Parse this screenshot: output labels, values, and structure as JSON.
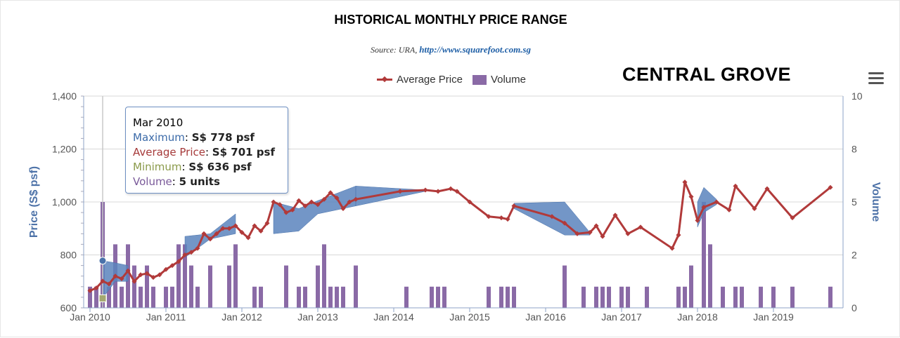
{
  "header": {
    "title": "HISTORICAL MONTHLY PRICE RANGE",
    "source_prefix": "Source: URA,",
    "source_link": "http://www.squarefoot.com.sg",
    "project_name": "CENTRAL GROVE"
  },
  "legend": {
    "avg_label": "Average Price",
    "vol_label": "Volume"
  },
  "colors": {
    "avg_line": "#b13a3a",
    "range_band": "#5b84bd",
    "volume_bar": "#8a6aa6",
    "axis_left": "#4d72a8",
    "axis_right": "#4d72a8"
  },
  "tooltip": {
    "month": "Mar 2010",
    "max_label": "Maximum",
    "max_value": "S$ 778 psf",
    "avg_label": "Average Price",
    "avg_value": "S$ 701 psf",
    "min_label": "Minimum",
    "min_value": "S$ 636 psf",
    "vol_label": "Volume",
    "vol_value": "5 units"
  },
  "chart_data": {
    "type": "line",
    "x_axis": {
      "ticks": [
        "Jan 2010",
        "Jan 2011",
        "Jan 2012",
        "Jan 2013",
        "Jan 2014",
        "Jan 2015",
        "Jan 2016",
        "Jan 2017",
        "Jan 2018",
        "Jan 2019"
      ],
      "range": [
        "2009-12",
        "2019-12"
      ]
    },
    "y_axis_left": {
      "label": "Price (S$ psf)",
      "range": [
        600,
        1400
      ],
      "ticks": [
        "600",
        "800",
        "1,000",
        "1,200",
        "1,400"
      ]
    },
    "y_axis_right": {
      "label": "Volume",
      "range": [
        0,
        10
      ],
      "ticks": [
        "0",
        "2",
        "5",
        "8",
        "10"
      ]
    },
    "grid": true,
    "legend_position": "top-center",
    "series": [
      {
        "name": "Average Price",
        "kind": "line",
        "points": [
          [
            "2010-01",
            665
          ],
          [
            "2010-02",
            675
          ],
          [
            "2010-03",
            701
          ],
          [
            "2010-04",
            690
          ],
          [
            "2010-05",
            720
          ],
          [
            "2010-06",
            710
          ],
          [
            "2010-07",
            740
          ],
          [
            "2010-08",
            700
          ],
          [
            "2010-09",
            725
          ],
          [
            "2010-10",
            730
          ],
          [
            "2010-11",
            715
          ],
          [
            "2010-12",
            725
          ],
          [
            "2011-01",
            745
          ],
          [
            "2011-02",
            760
          ],
          [
            "2011-03",
            775
          ],
          [
            "2011-04",
            800
          ],
          [
            "2011-05",
            810
          ],
          [
            "2011-06",
            825
          ],
          [
            "2011-07",
            880
          ],
          [
            "2011-08",
            860
          ],
          [
            "2011-09",
            880
          ],
          [
            "2011-10",
            900
          ],
          [
            "2011-11",
            900
          ],
          [
            "2011-12",
            910
          ],
          [
            "2012-01",
            885
          ],
          [
            "2012-02",
            865
          ],
          [
            "2012-03",
            910
          ],
          [
            "2012-04",
            890
          ],
          [
            "2012-05",
            920
          ],
          [
            "2012-06",
            1000
          ],
          [
            "2012-07",
            990
          ],
          [
            "2012-08",
            960
          ],
          [
            "2012-09",
            970
          ],
          [
            "2012-10",
            1005
          ],
          [
            "2012-11",
            985
          ],
          [
            "2012-12",
            1000
          ],
          [
            "2013-01",
            990
          ],
          [
            "2013-02",
            1010
          ],
          [
            "2013-03",
            1035
          ],
          [
            "2013-04",
            1015
          ],
          [
            "2013-05",
            975
          ],
          [
            "2013-06",
            1000
          ],
          [
            "2013-07",
            1010
          ],
          [
            "2014-02",
            1040
          ],
          [
            "2014-06",
            1045
          ],
          [
            "2014-08",
            1040
          ],
          [
            "2014-10",
            1050
          ],
          [
            "2014-11",
            1040
          ],
          [
            "2015-01",
            1000
          ],
          [
            "2015-04",
            945
          ],
          [
            "2015-06",
            940
          ],
          [
            "2015-07",
            935
          ],
          [
            "2015-08",
            985
          ],
          [
            "2016-02",
            945
          ],
          [
            "2016-04",
            920
          ],
          [
            "2016-06",
            880
          ],
          [
            "2016-08",
            885
          ],
          [
            "2016-09",
            910
          ],
          [
            "2016-10",
            870
          ],
          [
            "2016-12",
            950
          ],
          [
            "2017-02",
            880
          ],
          [
            "2017-04",
            905
          ],
          [
            "2017-09",
            825
          ],
          [
            "2017-10",
            875
          ],
          [
            "2017-11",
            1075
          ],
          [
            "2017-12",
            1020
          ],
          [
            "2018-01",
            930
          ],
          [
            "2018-02",
            980
          ],
          [
            "2018-04",
            1000
          ],
          [
            "2018-06",
            970
          ],
          [
            "2018-07",
            1060
          ],
          [
            "2018-10",
            975
          ],
          [
            "2018-12",
            1050
          ],
          [
            "2019-04",
            940
          ],
          [
            "2019-10",
            1055
          ]
        ]
      },
      {
        "name": "Maximum",
        "kind": "range_upper",
        "points": [
          [
            "2010-03",
            778
          ],
          [
            "2010-05",
            770
          ],
          [
            "2010-07",
            760
          ],
          [
            "2011-04",
            870
          ],
          [
            "2011-08",
            880
          ],
          [
            "2011-12",
            955
          ],
          [
            "2012-06",
            1000
          ],
          [
            "2012-10",
            975
          ],
          [
            "2013-01",
            1005
          ],
          [
            "2013-07",
            1060
          ],
          [
            "2014-06",
            1045
          ],
          [
            "2015-08",
            995
          ],
          [
            "2016-04",
            1000
          ],
          [
            "2016-08",
            885
          ],
          [
            "2018-01",
            1000
          ],
          [
            "2018-02",
            1055
          ],
          [
            "2018-04",
            1010
          ]
        ]
      },
      {
        "name": "Minimum",
        "kind": "range_lower",
        "points": [
          [
            "2010-03",
            636
          ],
          [
            "2010-05",
            700
          ],
          [
            "2010-07",
            700
          ],
          [
            "2011-04",
            790
          ],
          [
            "2011-08",
            860
          ],
          [
            "2011-12",
            880
          ],
          [
            "2012-06",
            880
          ],
          [
            "2012-10",
            890
          ],
          [
            "2013-01",
            955
          ],
          [
            "2013-07",
            985
          ],
          [
            "2014-06",
            1040
          ],
          [
            "2015-08",
            975
          ],
          [
            "2016-04",
            875
          ],
          [
            "2016-08",
            875
          ],
          [
            "2018-01",
            905
          ],
          [
            "2018-02",
            960
          ],
          [
            "2018-04",
            990
          ]
        ]
      },
      {
        "name": "Volume",
        "kind": "bars",
        "points": [
          [
            "2010-01",
            1
          ],
          [
            "2010-02",
            1
          ],
          [
            "2010-03",
            5
          ],
          [
            "2010-04",
            1
          ],
          [
            "2010-05",
            3
          ],
          [
            "2010-06",
            1
          ],
          [
            "2010-07",
            3
          ],
          [
            "2010-08",
            2
          ],
          [
            "2010-09",
            1
          ],
          [
            "2010-10",
            2
          ],
          [
            "2010-11",
            1
          ],
          [
            "2011-01",
            1
          ],
          [
            "2011-02",
            1
          ],
          [
            "2011-03",
            3
          ],
          [
            "2011-04",
            3
          ],
          [
            "2011-05",
            2
          ],
          [
            "2011-06",
            1
          ],
          [
            "2011-08",
            2
          ],
          [
            "2011-11",
            2
          ],
          [
            "2011-12",
            3
          ],
          [
            "2012-03",
            1
          ],
          [
            "2012-04",
            1
          ],
          [
            "2012-08",
            2
          ],
          [
            "2012-10",
            1
          ],
          [
            "2012-11",
            1
          ],
          [
            "2013-01",
            2
          ],
          [
            "2013-02",
            3
          ],
          [
            "2013-03",
            1
          ],
          [
            "2013-04",
            1
          ],
          [
            "2013-05",
            1
          ],
          [
            "2013-07",
            2
          ],
          [
            "2014-03",
            1
          ],
          [
            "2014-07",
            1
          ],
          [
            "2014-08",
            1
          ],
          [
            "2014-09",
            1
          ],
          [
            "2015-04",
            1
          ],
          [
            "2015-06",
            1
          ],
          [
            "2015-07",
            1
          ],
          [
            "2015-08",
            1
          ],
          [
            "2016-04",
            2
          ],
          [
            "2016-07",
            1
          ],
          [
            "2016-09",
            1
          ],
          [
            "2016-10",
            1
          ],
          [
            "2016-11",
            1
          ],
          [
            "2017-01",
            1
          ],
          [
            "2017-02",
            1
          ],
          [
            "2017-05",
            1
          ],
          [
            "2017-10",
            1
          ],
          [
            "2017-11",
            1
          ],
          [
            "2017-12",
            2
          ],
          [
            "2018-02",
            5
          ],
          [
            "2018-03",
            3
          ],
          [
            "2018-05",
            1
          ],
          [
            "2018-07",
            1
          ],
          [
            "2018-08",
            1
          ],
          [
            "2018-11",
            1
          ],
          [
            "2019-01",
            1
          ],
          [
            "2019-04",
            1
          ],
          [
            "2019-10",
            1
          ]
        ]
      }
    ]
  }
}
